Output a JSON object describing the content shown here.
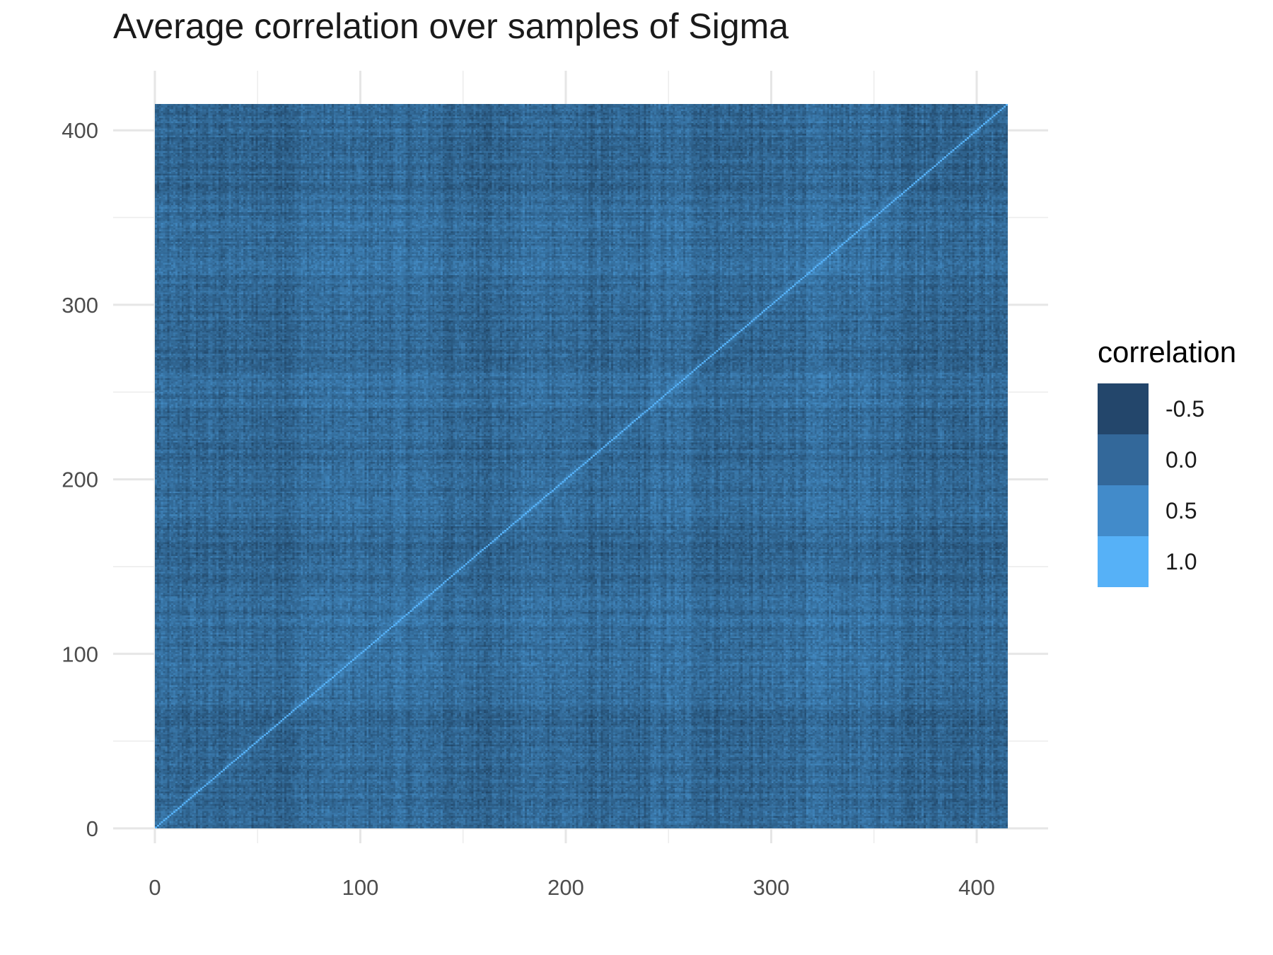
{
  "chart_data": {
    "type": "heatmap",
    "title": "Average correlation over samples of Sigma",
    "xlabel": "",
    "ylabel": "",
    "xlim": [
      -1,
      437
    ],
    "ylim": [
      -1,
      422
    ],
    "matrix_size": 415,
    "x_ticks": [
      0,
      100,
      200,
      300,
      400
    ],
    "y_ticks": [
      0,
      100,
      200,
      300,
      400
    ],
    "x_tick_labels": [
      "0",
      "100",
      "200",
      "300",
      "400"
    ],
    "y_tick_labels": [
      "0",
      "100",
      "200",
      "300",
      "400"
    ],
    "grid": true,
    "legend_position": "right",
    "diagonal_value": 1.0,
    "typical_offdiagonal_range": [
      -0.3,
      0.4
    ],
    "legend": {
      "title": "correlation",
      "breaks": [
        {
          "label": "-0.5",
          "value": -0.5,
          "color": "#23466b"
        },
        {
          "label": "0.0",
          "value": 0.0,
          "color": "#33689a"
        },
        {
          "label": "0.5",
          "value": 0.5,
          "color": "#428bca"
        },
        {
          "label": "1.0",
          "value": 1.0,
          "color": "#56b1f7"
        }
      ]
    },
    "color_scale": {
      "low": "#132B43",
      "high": "#56B1F7",
      "limits": [
        -0.7,
        1.0
      ]
    }
  }
}
